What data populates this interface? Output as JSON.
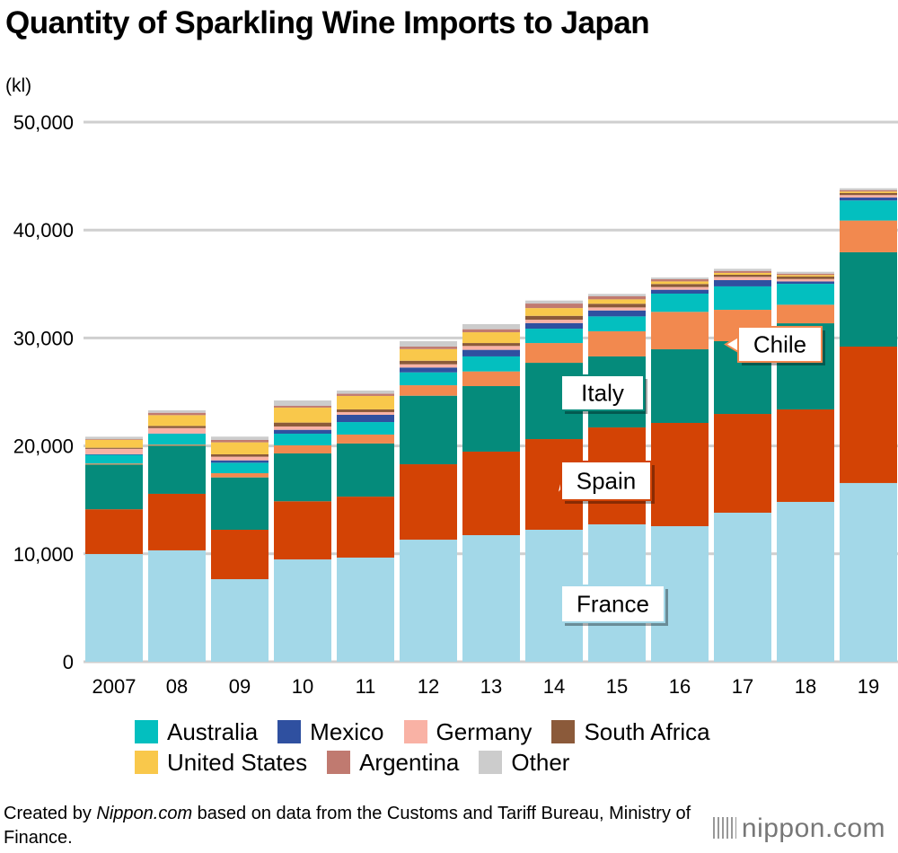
{
  "title": "Quantity of Sparkling Wine Imports to Japan",
  "footer": {
    "prefix": "Created by ",
    "site": "Nippon.com",
    "suffix": " based on data from the Customs and Tariff Bureau, Ministry of Finance."
  },
  "logo": "nippon.com",
  "chart_data": {
    "type": "bar",
    "stacked": true,
    "title": "Quantity of Sparkling Wine Imports to Japan",
    "ylabel": "(kl)",
    "ylim": [
      0,
      50000
    ],
    "yticks": [
      "0",
      "10,000",
      "20,000",
      "30,000",
      "40,000",
      "50,000"
    ],
    "ytick_values": [
      0,
      10000,
      20000,
      30000,
      40000,
      50000
    ],
    "grid": true,
    "legend": "bottom",
    "categories": [
      "2007",
      "08",
      "09",
      "10",
      "11",
      "12",
      "13",
      "14",
      "15",
      "16",
      "17",
      "18",
      "19"
    ],
    "series": [
      {
        "name": "France",
        "color": "#a3d8e8",
        "label_on_chart": true,
        "values": [
          9980,
          10320,
          7650,
          9480,
          9650,
          11310,
          11730,
          12230,
          12730,
          12560,
          13810,
          14810,
          16560
        ]
      },
      {
        "name": "Spain",
        "color": "#d34305",
        "label_on_chart": true,
        "values": [
          4150,
          5240,
          4580,
          5390,
          5650,
          6990,
          7740,
          8400,
          8980,
          9570,
          9150,
          8570,
          12640
        ]
      },
      {
        "name": "Italy",
        "color": "#058b7b",
        "label_on_chart": true,
        "values": [
          4140,
          4460,
          4850,
          4430,
          4920,
          6350,
          6070,
          7070,
          6580,
          6820,
          6740,
          7980,
          8740
        ]
      },
      {
        "name": "Chile",
        "color": "#f2894f",
        "label_on_chart": true,
        "values": [
          100,
          100,
          390,
          750,
          830,
          970,
          1360,
          1830,
          2330,
          3470,
          2910,
          1720,
          2940
        ]
      },
      {
        "name": "Australia",
        "color": "#03bfbf",
        "values": [
          800,
          1000,
          970,
          1080,
          1160,
          1190,
          1390,
          1330,
          1380,
          1690,
          2170,
          1940,
          1860
        ]
      },
      {
        "name": "Mexico",
        "color": "#2f50a0",
        "values": [
          60,
          30,
          220,
          360,
          670,
          450,
          610,
          520,
          550,
          360,
          580,
          220,
          270
        ]
      },
      {
        "name": "Germany",
        "color": "#f9b2a5",
        "values": [
          500,
          500,
          340,
          310,
          250,
          300,
          360,
          310,
          280,
          250,
          300,
          220,
          230
        ]
      },
      {
        "name": "South Africa",
        "color": "#8b5a3a",
        "values": [
          100,
          200,
          220,
          360,
          250,
          330,
          270,
          360,
          340,
          280,
          200,
          230,
          190
        ]
      },
      {
        "name": "United States",
        "color": "#f9c84b",
        "values": [
          740,
          1000,
          1110,
          1390,
          1250,
          1080,
          1000,
          720,
          410,
          240,
          170,
          140,
          140
        ]
      },
      {
        "name": "Argentina",
        "color": "#c07a70",
        "values": [
          60,
          220,
          220,
          160,
          200,
          230,
          280,
          420,
          280,
          200,
          180,
          130,
          130
        ]
      },
      {
        "name": "Other",
        "color": "#cccccc",
        "values": [
          220,
          230,
          310,
          500,
          300,
          500,
          470,
          280,
          220,
          160,
          200,
          170,
          170
        ]
      }
    ],
    "legend_rows": [
      [
        "Australia",
        "Mexico",
        "Germany",
        "South Africa"
      ],
      [
        "United States",
        "Argentina",
        "Other"
      ]
    ]
  }
}
